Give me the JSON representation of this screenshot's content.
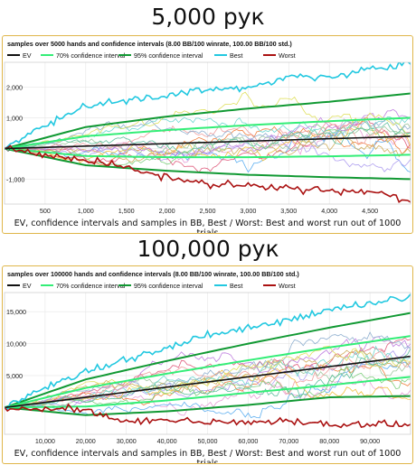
{
  "top": {
    "heading": "5,000 рук",
    "caption": "EV, confidence intervals and samples in BB, Best / Worst: Best and worst run out of 1000 trials"
  },
  "bottom": {
    "heading": "100,000 рук",
    "caption": "EV, confidence intervals and samples in BB, Best / Worst: Best and worst run out of 1000 trials"
  },
  "legend": [
    {
      "label": "EV",
      "color": "#111111"
    },
    {
      "label": "70% confidence interval",
      "color": "#33ee77"
    },
    {
      "label": "95% confidence interval",
      "color": "#119933"
    },
    {
      "label": "Best",
      "color": "#22c8e0"
    },
    {
      "label": "Worst",
      "color": "#aa1111"
    }
  ],
  "chart_data": [
    {
      "type": "line",
      "title": "samples over 5000 hands and confidence intervals (8.00 BB/100 winrate, 100.00 BB/100 std.)",
      "hands": 5000,
      "winrate_bb_per_100": 8.0,
      "std_bb_per_100": 100.0,
      "xlim": [
        0,
        5000
      ],
      "ylim": [
        -1800,
        2800
      ],
      "x_ticks": [
        500,
        1000,
        1500,
        2000,
        2500,
        3000,
        3500,
        4000,
        4500
      ],
      "x_tick_labels": [
        "500",
        "1,000",
        "1,500",
        "2,000",
        "2,500",
        "3,000",
        "3,500",
        "4,000",
        "4,500"
      ],
      "y_ticks": [
        -1000,
        0,
        1000,
        2000
      ],
      "y_tick_labels": [
        "-1,000",
        "0",
        "1,000",
        "2,000"
      ],
      "series": [
        {
          "name": "EV",
          "x": [
            0,
            5000
          ],
          "y": [
            0,
            400
          ]
        },
        {
          "name": "70% confidence interval",
          "x": [
            0,
            1000,
            2000,
            3000,
            4000,
            5000
          ],
          "y_upper": [
            0,
            400,
            600,
            760,
            890,
            1000
          ],
          "y_lower": [
            0,
            -240,
            -280,
            -280,
            -250,
            -200
          ]
        },
        {
          "name": "95% confidence interval",
          "x": [
            0,
            1000,
            2000,
            3000,
            4000,
            5000
          ],
          "y_upper": [
            0,
            700,
            1040,
            1300,
            1520,
            1790
          ],
          "y_lower": [
            0,
            -540,
            -720,
            -850,
            -930,
            -990
          ]
        },
        {
          "name": "Best",
          "x": [
            0,
            500,
            1000,
            1500,
            2000,
            2500,
            3000,
            3500,
            4000,
            4500,
            5000
          ],
          "y": [
            0,
            780,
            1350,
            1550,
            1700,
            1950,
            1950,
            2350,
            2300,
            2600,
            2750
          ]
        },
        {
          "name": "Worst",
          "x": [
            0,
            500,
            1000,
            1500,
            2000,
            2500,
            3000,
            3500,
            4000,
            4500,
            5000
          ],
          "y": [
            0,
            -180,
            -380,
            -620,
            -950,
            -1150,
            -1200,
            -1300,
            -1350,
            -1400,
            -1700
          ]
        }
      ]
    },
    {
      "type": "line",
      "title": "samples over 100000 hands and confidence intervals (8.00 BB/100 winrate, 100.00 BB/100 std.)",
      "hands": 100000,
      "winrate_bb_per_100": 8.0,
      "std_bb_per_100": 100.0,
      "xlim": [
        0,
        100000
      ],
      "ylim": [
        -4200,
        18000
      ],
      "x_ticks": [
        10000,
        20000,
        30000,
        40000,
        50000,
        60000,
        70000,
        80000,
        90000
      ],
      "x_tick_labels": [
        "10,000",
        "20,000",
        "30,000",
        "40,000",
        "50,000",
        "60,000",
        "70,000",
        "80,000",
        "90,000"
      ],
      "y_ticks": [
        5000,
        10000,
        15000
      ],
      "y_tick_labels": [
        "5,000",
        "10,000",
        "15,000"
      ],
      "series": [
        {
          "name": "EV",
          "x": [
            0,
            100000
          ],
          "y": [
            0,
            8000
          ]
        },
        {
          "name": "70% confidence interval",
          "x": [
            0,
            20000,
            40000,
            60000,
            80000,
            100000
          ],
          "y_upper": [
            0,
            3050,
            5300,
            7400,
            9400,
            11200
          ],
          "y_lower": [
            0,
            150,
            1100,
            2300,
            3500,
            4800
          ]
        },
        {
          "name": "95% confidence interval",
          "x": [
            0,
            20000,
            40000,
            60000,
            80000,
            100000
          ],
          "y_upper": [
            0,
            4400,
            7300,
            10000,
            12500,
            14800
          ],
          "y_lower": [
            0,
            -1200,
            -600,
            400,
            1600,
            1800
          ]
        },
        {
          "name": "Best",
          "x": [
            0,
            10000,
            20000,
            30000,
            40000,
            50000,
            60000,
            70000,
            80000,
            90000,
            100000
          ],
          "y": [
            0,
            3200,
            5600,
            7400,
            9200,
            11400,
            12500,
            13700,
            15300,
            16200,
            17300
          ]
        },
        {
          "name": "Worst",
          "x": [
            0,
            10000,
            20000,
            30000,
            40000,
            50000,
            60000,
            70000,
            80000,
            90000,
            100000
          ],
          "y": [
            0,
            -300,
            -450,
            -2200,
            -1900,
            -2300,
            -2400,
            -2000,
            -2700,
            -2500,
            -2800
          ]
        }
      ]
    }
  ]
}
